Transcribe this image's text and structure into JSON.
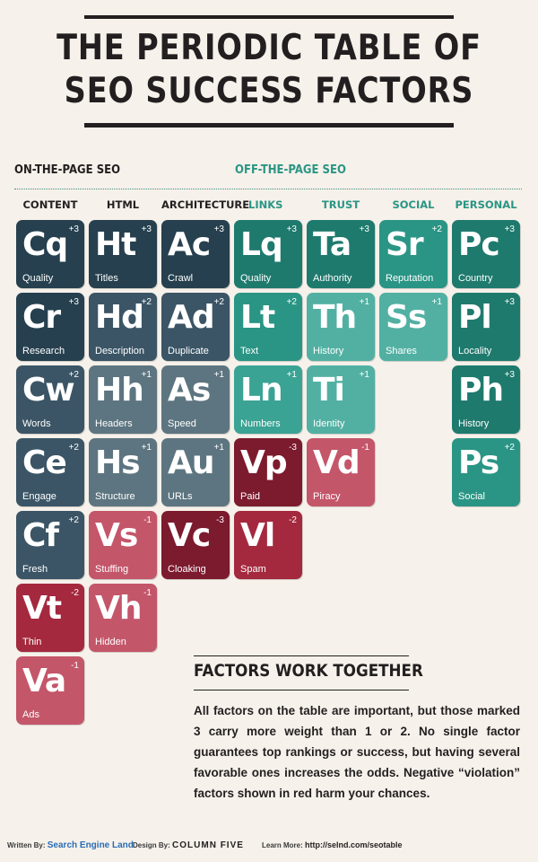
{
  "title_line1": "THE PERIODIC TABLE OF",
  "title_line2": "SEO SUCCESS FACTORS",
  "sections": {
    "on_page": "ON-THE-PAGE SEO",
    "off_page": "OFF-THE-PAGE SEO"
  },
  "columns": [
    "CONTENT",
    "HTML",
    "ARCHITECTURE",
    "LINKS",
    "TRUST",
    "SOCIAL",
    "PERSONAL"
  ],
  "elements": [
    {
      "sym": "Cq",
      "name": "Quality",
      "weight": "+3",
      "color": "#26404f"
    },
    {
      "sym": "Cr",
      "name": "Research",
      "weight": "+3",
      "color": "#26404f"
    },
    {
      "sym": "Cw",
      "name": "Words",
      "weight": "+2",
      "color": "#3b5566"
    },
    {
      "sym": "Ce",
      "name": "Engage",
      "weight": "+2",
      "color": "#3b5566"
    },
    {
      "sym": "Cf",
      "name": "Fresh",
      "weight": "+2",
      "color": "#3b5566"
    },
    {
      "sym": "Vt",
      "name": "Thin",
      "weight": "-2",
      "color": "#a4293e"
    },
    {
      "sym": "Va",
      "name": "Ads",
      "weight": "-1",
      "color": "#c4566a"
    },
    {
      "sym": "Ht",
      "name": "Titles",
      "weight": "+3",
      "color": "#26404f"
    },
    {
      "sym": "Hd",
      "name": "Description",
      "weight": "+2",
      "color": "#3b5566"
    },
    {
      "sym": "Hh",
      "name": "Headers",
      "weight": "+1",
      "color": "#5d7580"
    },
    {
      "sym": "Hs",
      "name": "Structure",
      "weight": "+1",
      "color": "#5d7580"
    },
    {
      "sym": "Vs",
      "name": "Stuffing",
      "weight": "-1",
      "color": "#c4566a"
    },
    {
      "sym": "Vh",
      "name": "Hidden",
      "weight": "-1",
      "color": "#c4566a"
    },
    {
      "sym": "Ac",
      "name": "Crawl",
      "weight": "+3",
      "color": "#26404f"
    },
    {
      "sym": "Ad",
      "name": "Duplicate",
      "weight": "+2",
      "color": "#3b5566"
    },
    {
      "sym": "As",
      "name": "Speed",
      "weight": "+1",
      "color": "#5d7580"
    },
    {
      "sym": "Au",
      "name": "URLs",
      "weight": "+1",
      "color": "#5d7580"
    },
    {
      "sym": "Vc",
      "name": "Cloaking",
      "weight": "-3",
      "color": "#7c1a2e"
    },
    {
      "sym": "Lq",
      "name": "Quality",
      "weight": "+3",
      "color": "#1f7a6e"
    },
    {
      "sym": "Lt",
      "name": "Text",
      "weight": "+2",
      "color": "#2a9585"
    },
    {
      "sym": "Ln",
      "name": "Numbers",
      "weight": "+1",
      "color": "#3aa394"
    },
    {
      "sym": "Vp",
      "name": "Paid",
      "weight": "-3",
      "color": "#7c1a2e"
    },
    {
      "sym": "Vl",
      "name": "Spam",
      "weight": "-2",
      "color": "#a4293e"
    },
    {
      "sym": "Ta",
      "name": "Authority",
      "weight": "+3",
      "color": "#1f7a6e"
    },
    {
      "sym": "Th",
      "name": "History",
      "weight": "+1",
      "color": "#52b0a3"
    },
    {
      "sym": "Ti",
      "name": "Identity",
      "weight": "+1",
      "color": "#52b0a3"
    },
    {
      "sym": "Vd",
      "name": "Piracy",
      "weight": "-1",
      "color": "#c4566a"
    },
    {
      "sym": "Sr",
      "name": "Reputation",
      "weight": "+2",
      "color": "#2a9585"
    },
    {
      "sym": "Ss",
      "name": "Shares",
      "weight": "+1",
      "color": "#52b0a3"
    },
    {
      "sym": "Pc",
      "name": "Country",
      "weight": "+3",
      "color": "#1f7a6e"
    },
    {
      "sym": "Pl",
      "name": "Locality",
      "weight": "+3",
      "color": "#1f7a6e"
    },
    {
      "sym": "Ph",
      "name": "History",
      "weight": "+3",
      "color": "#1f7a6e"
    },
    {
      "sym": "Ps",
      "name": "Social",
      "weight": "+2",
      "color": "#2a9585"
    }
  ],
  "factors": {
    "heading": "FACTORS WORK TOGETHER",
    "body": "All factors on the table are important, but those marked 3 carry more weight than 1 or 2. No single factor guarantees top rankings or success, but having several favorable ones increases the odds. Negative “violation” factors shown in red harm your chances."
  },
  "footer": {
    "written_by": "Written By:",
    "sel": "Search Engine Land",
    "design_by": "Design By:",
    "cf": "COLUMN FIVE",
    "learn_more": "Learn More:",
    "url": "http://selnd.com/seotable"
  }
}
